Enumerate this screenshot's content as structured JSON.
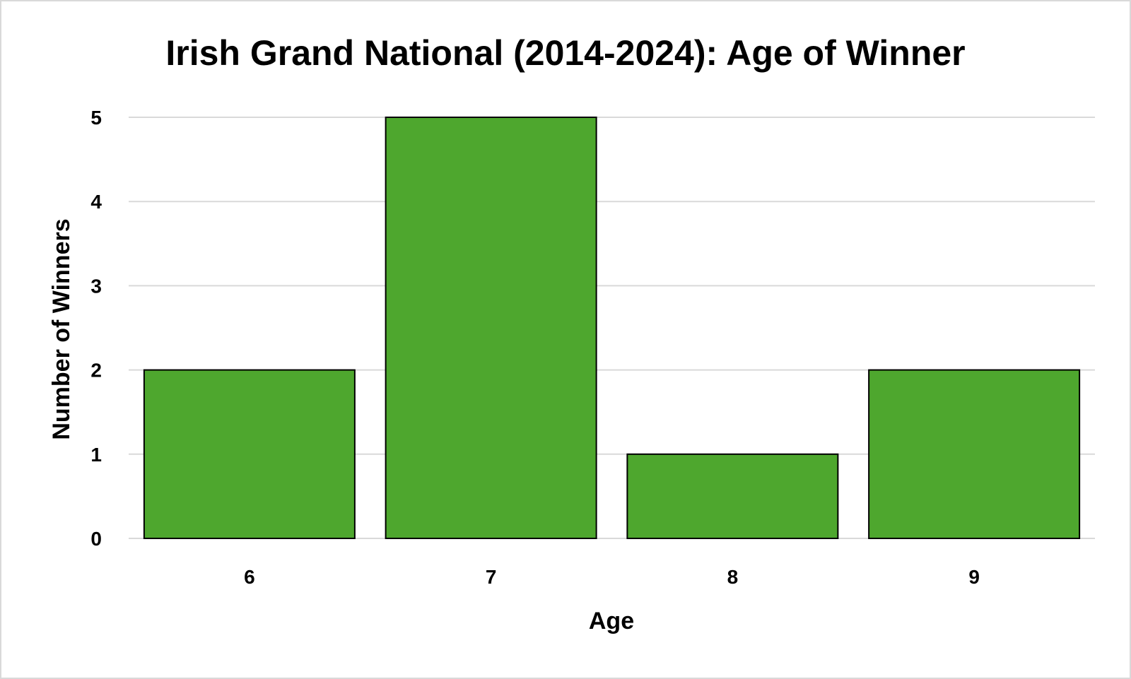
{
  "chart_data": {
    "type": "bar",
    "title": "Irish Grand National (2014-2024): Age of Winner",
    "xlabel": "Age",
    "ylabel": "Number of Winners",
    "categories": [
      "6",
      "7",
      "8",
      "9"
    ],
    "values": [
      2,
      5,
      1,
      2
    ],
    "ylim": [
      0,
      5
    ],
    "yticks": [
      "0",
      "1",
      "2",
      "3",
      "4",
      "5"
    ],
    "grid": true,
    "legend": "none",
    "bar_color": "#4ea72e",
    "bar_edge_color": "#000000",
    "grid_color": "#d9d9d9"
  }
}
